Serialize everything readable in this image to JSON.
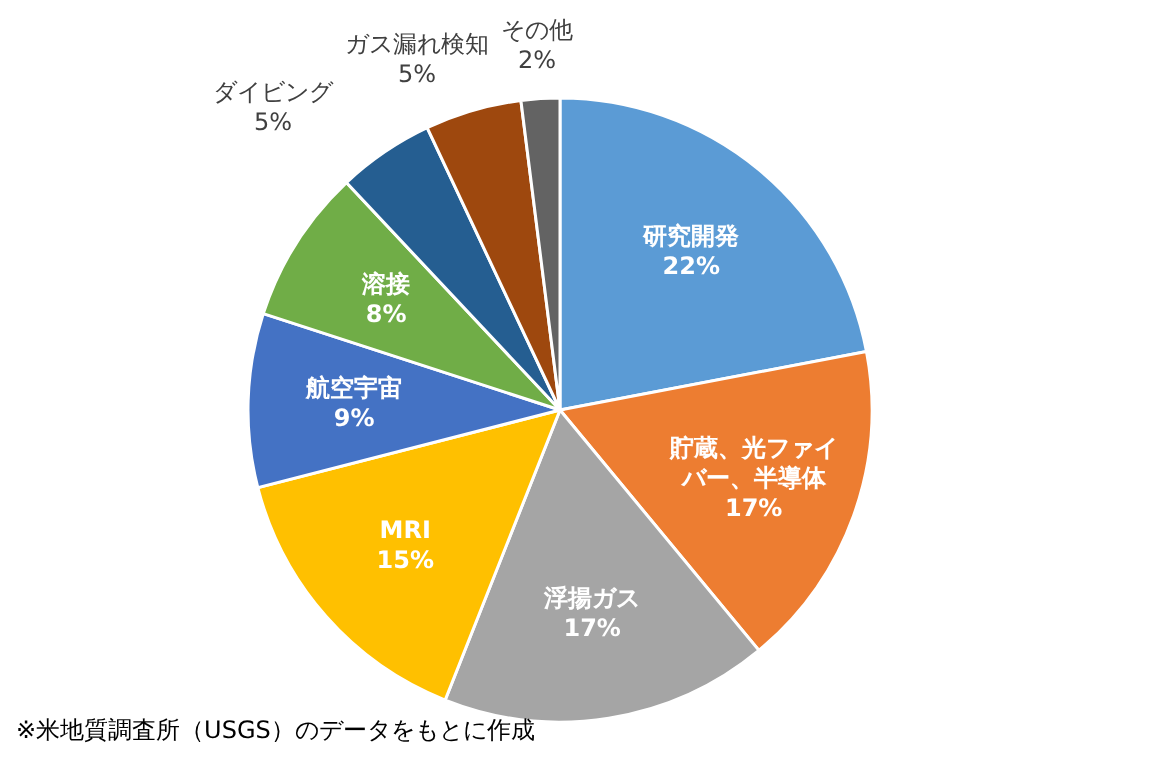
{
  "chart_data": {
    "type": "pie",
    "categories": [
      "研究開発",
      "貯蔵、光ファイバー、半導体",
      "浮揚ガス",
      "MRI",
      "航空宇宙",
      "溶接",
      "ダイビング",
      "ガス漏れ検知",
      "その他"
    ],
    "values": [
      22,
      17,
      17,
      15,
      9,
      8,
      5,
      5,
      2
    ],
    "value_labels": [
      "22%",
      "17%",
      "17%",
      "15%",
      "9%",
      "8%",
      "5%",
      "5%",
      "2%"
    ],
    "colors": [
      "#5b9bd5",
      "#ed7d31",
      "#a5a5a5",
      "#ffc000",
      "#4472c4",
      "#70ad47",
      "#255e91",
      "#9e480e",
      "#636363"
    ],
    "annotations": [
      "※米地質調査所（USGS）のデータをもとに作成"
    ]
  }
}
